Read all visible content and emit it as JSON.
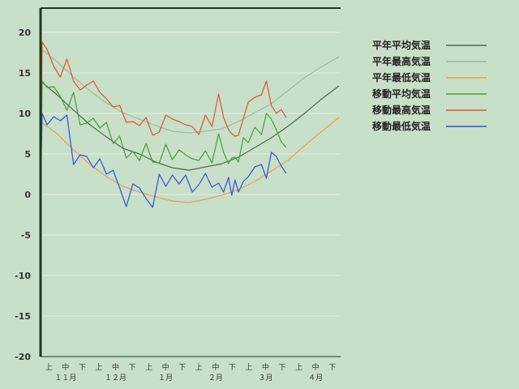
{
  "chart_data": {
    "type": "line",
    "title": "",
    "xlabel": "",
    "ylabel": "",
    "ylim": [
      -20,
      23
    ],
    "yticks": [
      20,
      15,
      10,
      5,
      0,
      -5,
      -10,
      -15,
      -20
    ],
    "grid": true,
    "legend_position": "right",
    "x_sub_labels": [
      "上",
      "中",
      "下"
    ],
    "months": [
      "１１月",
      "１２月",
      "１月",
      "２月",
      "３月",
      "４月"
    ],
    "x_unit": "day index from 11月1日",
    "xlim": [
      0,
      182
    ],
    "series": [
      {
        "name": "平年平均気温",
        "color": "#4d6b4d",
        "x": [
          0,
          10,
          20,
          30,
          40,
          50,
          60,
          70,
          80,
          90,
          100,
          110,
          120,
          130,
          140,
          150,
          160,
          170,
          181
        ],
        "values": [
          14.0,
          12.3,
          10.4,
          8.6,
          7.1,
          5.7,
          5.0,
          4.0,
          3.3,
          3.0,
          3.4,
          3.8,
          4.6,
          5.8,
          7.0,
          8.4,
          10.0,
          11.7,
          13.4
        ]
      },
      {
        "name": "平年最高気温",
        "color": "#a0b8a0",
        "x": [
          0,
          10,
          20,
          30,
          40,
          50,
          60,
          70,
          80,
          90,
          100,
          110,
          120,
          130,
          140,
          150,
          160,
          170,
          181
        ],
        "values": [
          18.0,
          16.4,
          14.5,
          12.8,
          11.3,
          10.1,
          9.3,
          8.5,
          7.8,
          7.6,
          7.8,
          8.1,
          9.0,
          10.1,
          11.2,
          12.8,
          14.4,
          15.7,
          17.0
        ]
      },
      {
        "name": "平年最低気温",
        "color": "#e8a050",
        "x": [
          0,
          10,
          20,
          30,
          40,
          50,
          60,
          70,
          80,
          90,
          100,
          110,
          120,
          130,
          140,
          150,
          160,
          170,
          181
        ],
        "values": [
          9.0,
          7.5,
          5.5,
          3.7,
          2.2,
          1.0,
          0.3,
          -0.3,
          -0.8,
          -1.0,
          -0.6,
          -0.1,
          0.6,
          1.6,
          2.9,
          4.2,
          6.0,
          7.7,
          9.5
        ]
      },
      {
        "name": "移動平均気温",
        "color": "#40a040",
        "x": [
          0,
          1,
          4,
          8,
          12,
          16,
          20,
          24,
          28,
          32,
          36,
          40,
          44,
          48,
          52,
          56,
          60,
          64,
          68,
          72,
          76,
          80,
          84,
          88,
          92,
          96,
          100,
          104,
          108,
          111,
          114,
          116,
          118,
          120,
          123,
          126,
          130,
          134,
          137,
          140,
          143,
          146,
          149
        ],
        "values": [
          0,
          14.0,
          13.2,
          13.3,
          12.1,
          10.4,
          12.6,
          8.6,
          8.8,
          9.4,
          8.2,
          8.9,
          6.3,
          7.2,
          4.5,
          5.3,
          4.2,
          6.3,
          4.0,
          3.9,
          6.2,
          4.3,
          5.5,
          4.9,
          4.4,
          4.2,
          5.4,
          3.9,
          7.5,
          5.2,
          3.8,
          4.5,
          4.6,
          4.0,
          7.0,
          6.4,
          8.3,
          7.4,
          10.0,
          9.3,
          8.0,
          6.5,
          5.8
        ]
      },
      {
        "name": "移動最高気温",
        "color": "#e05040",
        "x": [
          0,
          1,
          4,
          8,
          12,
          16,
          20,
          24,
          28,
          32,
          36,
          40,
          44,
          48,
          52,
          56,
          60,
          64,
          68,
          72,
          76,
          80,
          84,
          88,
          92,
          96,
          100,
          104,
          108,
          111,
          114,
          116,
          118,
          120,
          123,
          126,
          130,
          134,
          137,
          140,
          143,
          146,
          149
        ],
        "values": [
          0,
          18.8,
          17.9,
          15.8,
          14.5,
          16.7,
          14.0,
          12.9,
          13.5,
          14.0,
          12.6,
          11.8,
          10.8,
          11.0,
          8.9,
          9.0,
          8.5,
          9.5,
          7.3,
          7.7,
          9.8,
          9.3,
          9.0,
          8.6,
          8.4,
          7.4,
          9.8,
          8.4,
          12.4,
          9.5,
          8.0,
          7.5,
          7.2,
          7.3,
          9.4,
          11.4,
          12.0,
          12.3,
          14.0,
          11.0,
          10.0,
          10.5,
          9.5
        ]
      },
      {
        "name": "移動最低気温",
        "color": "#3050e0",
        "x": [
          0,
          1,
          4,
          8,
          12,
          16,
          20,
          24,
          28,
          32,
          36,
          40,
          44,
          48,
          52,
          56,
          60,
          64,
          68,
          72,
          76,
          80,
          84,
          88,
          92,
          96,
          100,
          104,
          108,
          111,
          114,
          116,
          118,
          120,
          123,
          126,
          130,
          134,
          137,
          140,
          143,
          146,
          149
        ],
        "values": [
          0,
          10.0,
          8.6,
          9.6,
          9.1,
          9.8,
          3.7,
          4.9,
          4.7,
          3.3,
          4.4,
          2.5,
          3.0,
          0.8,
          -1.5,
          1.3,
          0.8,
          -0.5,
          -1.6,
          2.5,
          1.0,
          2.4,
          1.3,
          2.4,
          0.3,
          1.2,
          2.6,
          0.9,
          1.4,
          0.3,
          2.1,
          -0.1,
          1.8,
          0.3,
          1.6,
          2.2,
          3.4,
          3.7,
          2.0,
          5.2,
          4.7,
          3.5,
          2.6
        ]
      }
    ]
  }
}
